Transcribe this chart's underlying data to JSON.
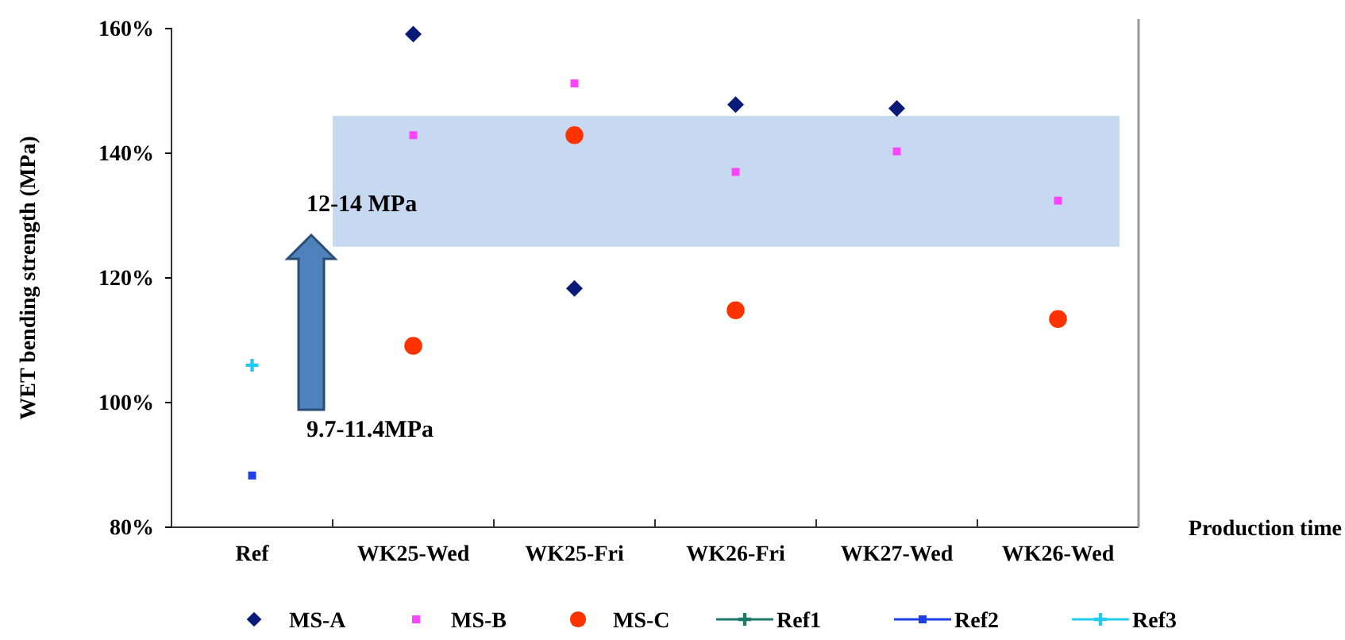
{
  "chart_data": {
    "type": "scatter",
    "ylabel": "WET bending strength (MPa)",
    "xlabel": "Production time",
    "categories": [
      "Ref",
      "WK25-Wed",
      "WK25-Fri",
      "WK26-Fri",
      "WK27-Wed",
      "WK26-Wed"
    ],
    "series": [
      {
        "name": "MS-A",
        "color": "#0a1a78",
        "marker": "diamond",
        "values": [
          null,
          159.1,
          118.3,
          147.8,
          147.2,
          null
        ]
      },
      {
        "name": "MS-B",
        "color": "#ff44ff",
        "marker": "square",
        "values": [
          null,
          142.9,
          151.2,
          137.0,
          140.3,
          132.4
        ]
      },
      {
        "name": "MS-C",
        "color": "#ff3300",
        "marker": "circle",
        "values": [
          null,
          109.1,
          142.9,
          114.8,
          null,
          113.4
        ]
      },
      {
        "name": "Ref1",
        "color": "#1f7a6a",
        "marker": "cross",
        "line_style": "solid",
        "values": [
          null,
          null,
          null,
          null,
          null,
          null
        ]
      },
      {
        "name": "Ref2",
        "color": "#1f3fe8",
        "marker": "square",
        "line_style": "solid",
        "values": [
          88.3,
          null,
          null,
          null,
          null,
          null
        ]
      },
      {
        "name": "Ref3",
        "color": "#22ccee",
        "marker": "cross",
        "line_style": "solid",
        "values": [
          106,
          null,
          null,
          null,
          null,
          null
        ]
      }
    ],
    "ylim": [
      80,
      160
    ],
    "yticks": [
      {
        "value": 80,
        "label": "80%"
      },
      {
        "value": 100,
        "label": "100%"
      },
      {
        "value": 120,
        "label": "120%"
      },
      {
        "value": 140,
        "label": "140%"
      },
      {
        "value": 160,
        "label": "160%"
      }
    ],
    "bands": [
      {
        "axis": "y",
        "from": 125,
        "to": 146,
        "color": "#c6d9f0"
      }
    ],
    "annotations": [
      "12-14 MPa",
      "9.7-11.4MPa"
    ],
    "grid": false,
    "legend": "bottom"
  }
}
